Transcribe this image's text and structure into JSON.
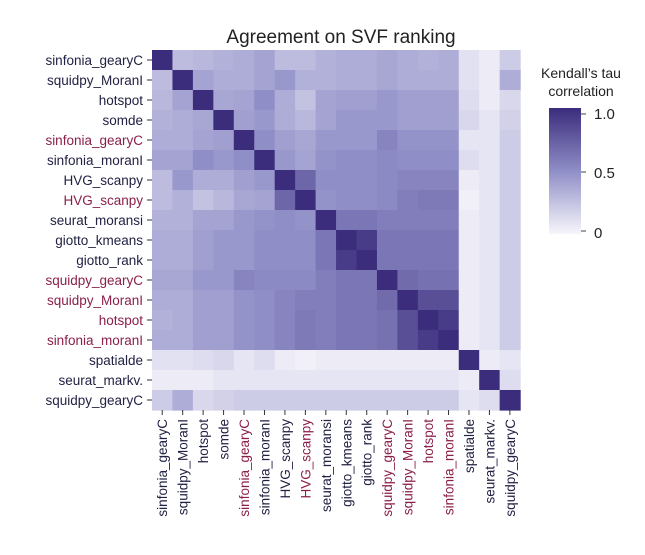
{
  "colors": {
    "low": "#f7f6fb",
    "high": "#3b2c7c",
    "label_default": "#222244",
    "label_highlight": "#8b1f4a"
  },
  "chart_data": {
    "type": "heatmap",
    "title": "Agreement on SVF ranking",
    "colorbar": {
      "title_lines": [
        "Kendall’s tau",
        "correlation"
      ],
      "range": [
        0,
        1
      ],
      "ticks": [
        "1.0",
        "0.5",
        "0"
      ]
    },
    "labels": [
      {
        "text": "sinfonia_gearyC",
        "highlight": false
      },
      {
        "text": "squidpy_MoranI",
        "highlight": false
      },
      {
        "text": "hotspot",
        "highlight": false
      },
      {
        "text": "somde",
        "highlight": false
      },
      {
        "text": "sinfonia_gearyC",
        "highlight": true
      },
      {
        "text": "sinfonia_moranI",
        "highlight": false
      },
      {
        "text": "HVG_scanpy",
        "highlight": false
      },
      {
        "text": "HVG_scanpy",
        "highlight": true
      },
      {
        "text": "seurat_moransi",
        "highlight": false
      },
      {
        "text": "giotto_kmeans",
        "highlight": false
      },
      {
        "text": "giotto_rank",
        "highlight": false
      },
      {
        "text": "squidpy_gearyC",
        "highlight": true
      },
      {
        "text": "squidpy_MoranI",
        "highlight": true
      },
      {
        "text": "hotspot",
        "highlight": true
      },
      {
        "text": "sinfonia_moranI",
        "highlight": true
      },
      {
        "text": "spatialde",
        "highlight": false
      },
      {
        "text": "seurat_markv.",
        "highlight": false
      },
      {
        "text": "squidpy_gearyC",
        "highlight": false
      }
    ],
    "matrix": [
      [
        1.0,
        0.28,
        0.3,
        0.33,
        0.35,
        0.4,
        0.28,
        0.28,
        0.33,
        0.35,
        0.35,
        0.38,
        0.35,
        0.33,
        0.35,
        0.1,
        0.05,
        0.2
      ],
      [
        0.28,
        1.0,
        0.4,
        0.35,
        0.35,
        0.4,
        0.45,
        0.33,
        0.33,
        0.35,
        0.35,
        0.38,
        0.35,
        0.35,
        0.35,
        0.1,
        0.05,
        0.35
      ],
      [
        0.3,
        0.4,
        1.0,
        0.38,
        0.4,
        0.5,
        0.35,
        0.25,
        0.4,
        0.42,
        0.42,
        0.45,
        0.42,
        0.42,
        0.42,
        0.12,
        0.05,
        0.15
      ],
      [
        0.33,
        0.35,
        0.38,
        1.0,
        0.42,
        0.45,
        0.35,
        0.3,
        0.4,
        0.45,
        0.45,
        0.45,
        0.42,
        0.42,
        0.42,
        0.15,
        0.08,
        0.18
      ],
      [
        0.35,
        0.35,
        0.4,
        0.42,
        1.0,
        0.5,
        0.42,
        0.38,
        0.45,
        0.45,
        0.45,
        0.55,
        0.48,
        0.48,
        0.48,
        0.08,
        0.08,
        0.2
      ],
      [
        0.4,
        0.4,
        0.5,
        0.45,
        0.5,
        1.0,
        0.45,
        0.4,
        0.48,
        0.5,
        0.5,
        0.52,
        0.5,
        0.5,
        0.5,
        0.12,
        0.08,
        0.2
      ],
      [
        0.28,
        0.45,
        0.35,
        0.35,
        0.42,
        0.45,
        1.0,
        0.7,
        0.5,
        0.5,
        0.5,
        0.52,
        0.55,
        0.55,
        0.55,
        0.05,
        0.08,
        0.2
      ],
      [
        0.28,
        0.33,
        0.25,
        0.3,
        0.38,
        0.4,
        0.7,
        1.0,
        0.48,
        0.5,
        0.5,
        0.52,
        0.58,
        0.6,
        0.6,
        0.03,
        0.08,
        0.2
      ],
      [
        0.33,
        0.33,
        0.4,
        0.4,
        0.45,
        0.48,
        0.5,
        0.48,
        1.0,
        0.62,
        0.62,
        0.58,
        0.58,
        0.58,
        0.58,
        0.05,
        0.08,
        0.2
      ],
      [
        0.35,
        0.35,
        0.42,
        0.45,
        0.45,
        0.5,
        0.5,
        0.5,
        0.62,
        1.0,
        0.92,
        0.62,
        0.62,
        0.62,
        0.62,
        0.05,
        0.08,
        0.2
      ],
      [
        0.35,
        0.35,
        0.42,
        0.45,
        0.45,
        0.5,
        0.5,
        0.5,
        0.62,
        0.92,
        1.0,
        0.62,
        0.62,
        0.62,
        0.62,
        0.05,
        0.08,
        0.2
      ],
      [
        0.38,
        0.38,
        0.45,
        0.45,
        0.55,
        0.52,
        0.52,
        0.52,
        0.58,
        0.62,
        0.62,
        1.0,
        0.68,
        0.65,
        0.65,
        0.05,
        0.08,
        0.2
      ],
      [
        0.35,
        0.35,
        0.42,
        0.42,
        0.48,
        0.5,
        0.55,
        0.58,
        0.58,
        0.62,
        0.62,
        0.68,
        1.0,
        0.82,
        0.82,
        0.05,
        0.08,
        0.2
      ],
      [
        0.33,
        0.35,
        0.42,
        0.42,
        0.48,
        0.5,
        0.55,
        0.6,
        0.58,
        0.62,
        0.62,
        0.65,
        0.82,
        1.0,
        0.92,
        0.05,
        0.08,
        0.2
      ],
      [
        0.35,
        0.35,
        0.42,
        0.42,
        0.48,
        0.5,
        0.55,
        0.6,
        0.58,
        0.62,
        0.62,
        0.65,
        0.82,
        0.92,
        1.0,
        0.05,
        0.08,
        0.2
      ],
      [
        0.1,
        0.1,
        0.12,
        0.15,
        0.08,
        0.12,
        0.05,
        0.03,
        0.05,
        0.05,
        0.05,
        0.05,
        0.05,
        0.05,
        0.05,
        1.0,
        0.05,
        0.08
      ],
      [
        0.05,
        0.05,
        0.05,
        0.08,
        0.08,
        0.08,
        0.08,
        0.08,
        0.08,
        0.08,
        0.08,
        0.08,
        0.08,
        0.08,
        0.08,
        0.05,
        1.0,
        0.12
      ],
      [
        0.2,
        0.35,
        0.15,
        0.18,
        0.2,
        0.2,
        0.2,
        0.2,
        0.2,
        0.2,
        0.2,
        0.2,
        0.2,
        0.2,
        0.2,
        0.08,
        0.12,
        1.0
      ]
    ]
  }
}
